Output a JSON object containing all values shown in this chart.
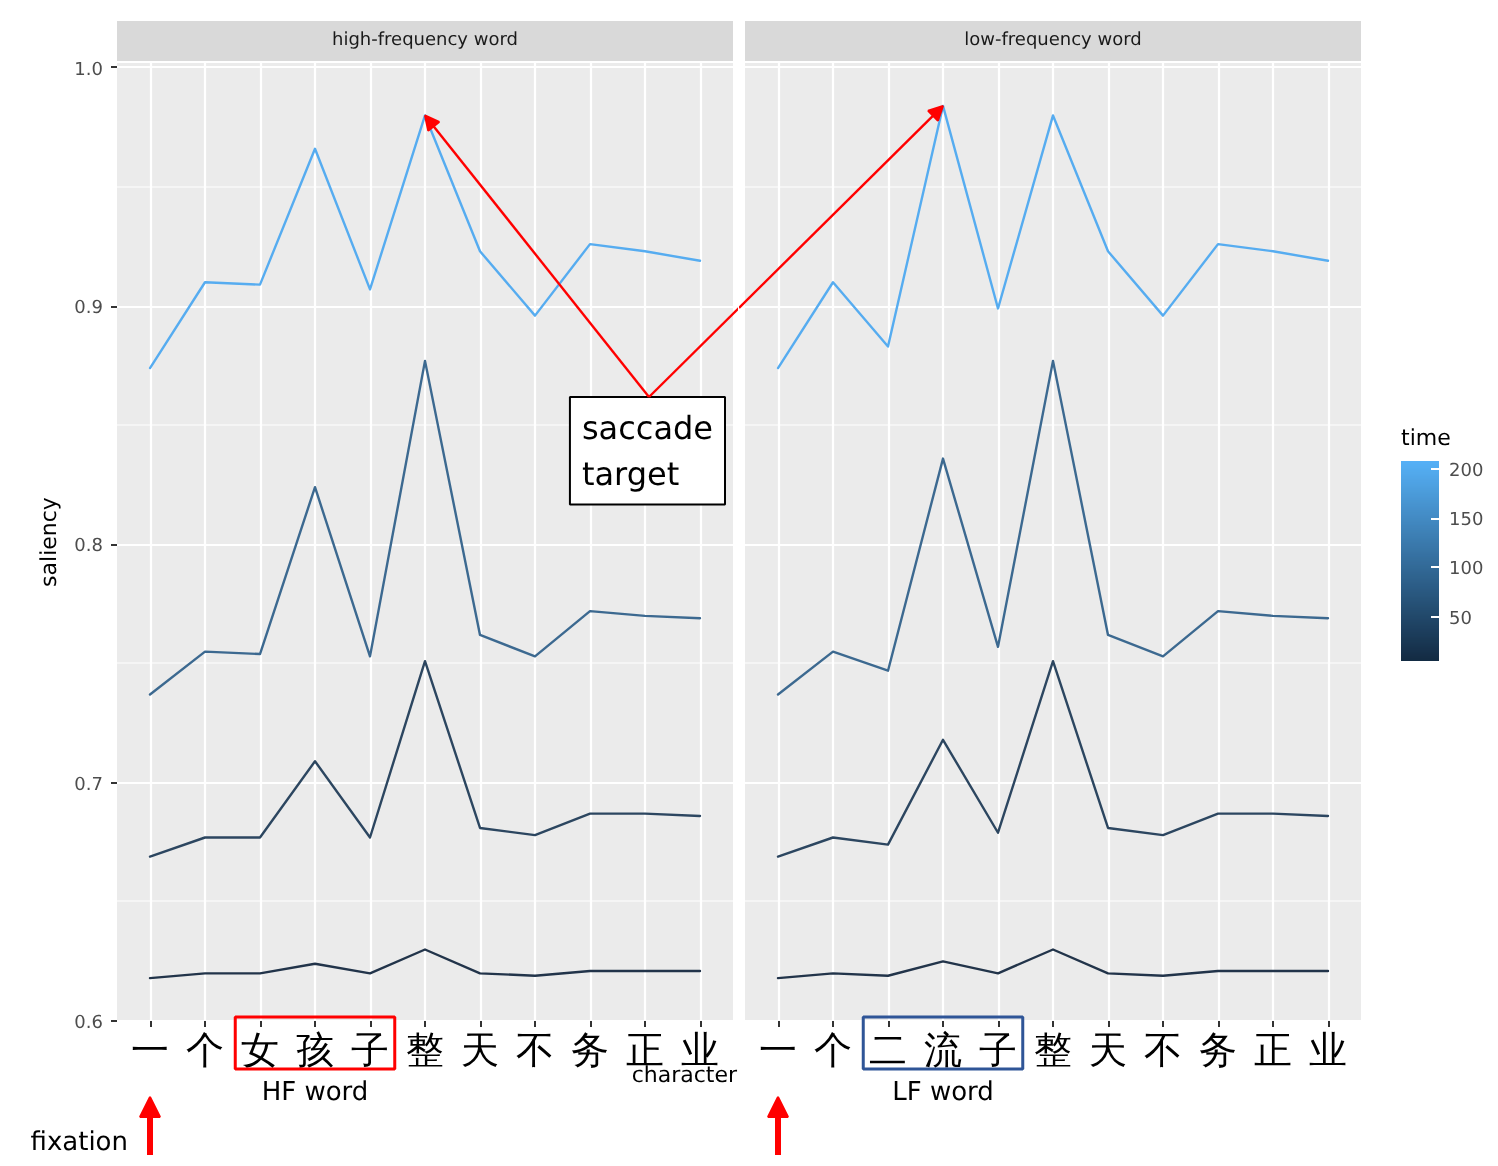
{
  "chart_data": [
    {
      "type": "line",
      "title": "high-frequency word",
      "xlabel": "character",
      "ylabel": "saliency",
      "categories": [
        "一",
        "个",
        "女",
        "孩",
        "子",
        "整",
        "天",
        "不",
        "务",
        "正",
        "业"
      ],
      "series": [
        {
          "color": "#56acf0",
          "values": [
            0.874,
            0.91,
            0.909,
            0.966,
            0.907,
            0.98,
            0.923,
            0.896,
            0.926,
            0.923,
            0.919
          ]
        },
        {
          "color": "#3c6990",
          "values": [
            0.737,
            0.755,
            0.754,
            0.824,
            0.753,
            0.877,
            0.762,
            0.753,
            0.772,
            0.77,
            0.769
          ]
        },
        {
          "color": "#2c4660",
          "values": [
            0.669,
            0.677,
            0.677,
            0.709,
            0.677,
            0.751,
            0.681,
            0.678,
            0.687,
            0.687,
            0.686
          ]
        },
        {
          "color": "#22344a",
          "values": [
            0.618,
            0.62,
            0.62,
            0.624,
            0.62,
            0.63,
            0.62,
            0.619,
            0.621,
            0.621,
            0.621
          ]
        }
      ],
      "ylim": [
        0.6,
        1.002
      ],
      "yticks": [
        0.6,
        0.7,
        0.8,
        0.9,
        {
          "value": 1.0,
          "label": "1.0"
        }
      ],
      "grid": true,
      "annotations": [
        {
          "text": "saccade target",
          "x": "整",
          "y": 0.98
        },
        "HF word",
        "fixation"
      ]
    },
    {
      "type": "line",
      "title": "low-frequency word",
      "categories": [
        "一",
        "个",
        "二",
        "流",
        "子",
        "整",
        "天",
        "不",
        "务",
        "正",
        "业"
      ],
      "series": [
        {
          "color": "#56acf0",
          "values": [
            0.874,
            0.91,
            0.883,
            0.984,
            0.899,
            0.98,
            0.923,
            0.896,
            0.926,
            0.923,
            0.919
          ]
        },
        {
          "color": "#3c6990",
          "values": [
            0.737,
            0.755,
            0.747,
            0.836,
            0.757,
            0.877,
            0.762,
            0.753,
            0.772,
            0.77,
            0.769
          ]
        },
        {
          "color": "#2c4660",
          "values": [
            0.669,
            0.677,
            0.674,
            0.718,
            0.679,
            0.751,
            0.681,
            0.678,
            0.687,
            0.687,
            0.686
          ]
        },
        {
          "color": "#22344a",
          "values": [
            0.618,
            0.62,
            0.619,
            0.625,
            0.62,
            0.63,
            0.62,
            0.619,
            0.621,
            0.621,
            0.621
          ]
        }
      ],
      "ylim": [
        0.6,
        1.002
      ],
      "yticks": [
        0.6,
        0.7,
        0.8,
        0.9,
        1
      ],
      "grid": true,
      "tick_labels": "x",
      "clabel": "time",
      "clim": [
        5,
        208
      ],
      "cticks": [
        50,
        100,
        150,
        200
      ],
      "annotations": [
        "LF word"
      ]
    }
  ]
}
